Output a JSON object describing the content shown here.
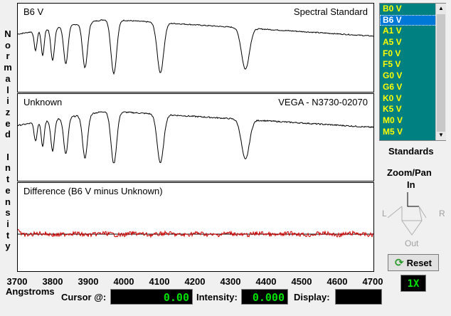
{
  "y_axis_label": "Normalized Intensity",
  "panels": [
    {
      "id": "standard",
      "title_left": "B6 V",
      "title_right": "Spectral Standard"
    },
    {
      "id": "unknown",
      "title_left": "Unknown",
      "title_right": "VEGA - N3730-02070"
    },
    {
      "id": "difference",
      "title_left": "Difference (B6 V minus Unknown)",
      "title_right": ""
    }
  ],
  "x_ticks": [
    "3700",
    "3800",
    "3900",
    "4000",
    "4100",
    "4200",
    "4300",
    "4400",
    "4500",
    "4600",
    "4700"
  ],
  "x_axis_label": "Angstroms",
  "status": {
    "cursor_label": "Cursor @:",
    "cursor_value": "0.00",
    "intensity_label": "Intensity:",
    "intensity_value": "0.000",
    "display_label": "Display:",
    "display_value": ""
  },
  "standards": {
    "items": [
      "B0 V",
      "B6 V",
      "A1 V",
      "A5 V",
      "F0 V",
      "F5 V",
      "G0 V",
      "G6 V",
      "K0 V",
      "K5 V",
      "M0 V",
      "M5 V"
    ],
    "selected_index": 1,
    "label": "Standards"
  },
  "zoom_pan": {
    "title": "Zoom/Pan",
    "in_label": "In",
    "out_label": "Out",
    "left_label": "L",
    "right_label": "R"
  },
  "reset_label": "Reset",
  "zoom_factor": "1X",
  "colors": {
    "spectrum": "#000000",
    "difference": "#cc0000",
    "zero_line": "#000000",
    "list_bg": "#008080",
    "list_text": "#ffff00",
    "lcd_text": "#00e000"
  },
  "chart_data": {
    "type": "line",
    "x_range": [
      3700,
      4700
    ],
    "xlabel": "Angstroms",
    "ylabel": "Normalized Intensity",
    "absorption_lines": [
      3750,
      3770,
      3798,
      3835,
      3889,
      3970,
      4101,
      4340
    ],
    "series": [
      {
        "name": "B6 V",
        "panel": "standard"
      },
      {
        "name": "Unknown",
        "panel": "unknown"
      },
      {
        "name": "Difference (B6 V minus Unknown)",
        "panel": "difference"
      }
    ]
  }
}
